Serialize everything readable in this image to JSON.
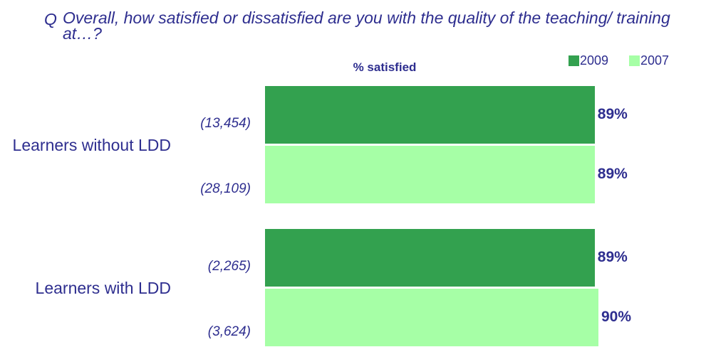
{
  "chart_data": {
    "type": "bar",
    "orientation": "horizontal",
    "question_label": "Q",
    "title": "Overall, how satisfied or dissatisfied are you with the quality of the teaching/ training at…?",
    "subtitle": "% satisfied",
    "categories": [
      "Learners without LDD",
      "Learners with LDD"
    ],
    "series": [
      {
        "name": "2009",
        "color": "#33a14f",
        "values": [
          89,
          89
        ],
        "value_labels": [
          "89%",
          "89%"
        ],
        "bases": [
          "(13,454)",
          "(2,265)"
        ]
      },
      {
        "name": "2007",
        "color": "#a6ffa6",
        "values": [
          89,
          90
        ],
        "value_labels": [
          "89%",
          "90%"
        ],
        "bases": [
          "(28,109)",
          "(3,624)"
        ]
      }
    ],
    "xlim": [
      0,
      100
    ],
    "legend": "top-right"
  }
}
